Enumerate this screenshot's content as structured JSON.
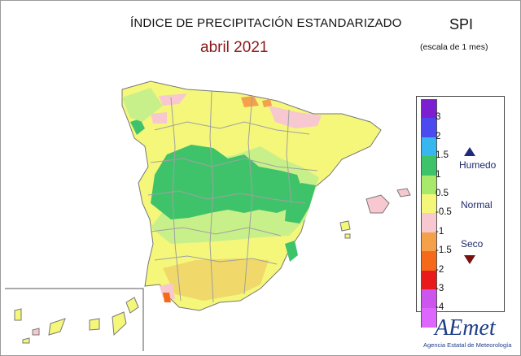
{
  "header": {
    "title": "ÍNDICE DE PRECIPITACIÓN ESTANDARIZADO",
    "period": "abril 2021",
    "index_name": "SPI",
    "scale_note": "(escala de 1 mes)"
  },
  "legend": {
    "entries": [
      {
        "label": "3",
        "color": "#7b1fd0"
      },
      {
        "label": "2",
        "color": "#4a4af0"
      },
      {
        "label": "1.5",
        "color": "#38b6f0"
      },
      {
        "label": "1",
        "color": "#3ec36b"
      },
      {
        "label": "0.5",
        "color": "#a8e86a"
      },
      {
        "label": "-0.5",
        "color": "#f5f77a"
      },
      {
        "label": "-1",
        "color": "#f7c8cf"
      },
      {
        "label": "-1.5",
        "color": "#f5a04a"
      },
      {
        "label": "-2",
        "color": "#f56a1a"
      },
      {
        "label": "-3",
        "color": "#e81a1a"
      },
      {
        "label": "-4",
        "color": "#cc55ee"
      }
    ],
    "bottom_color": "#dd66ff",
    "categories": {
      "wet": "Humedo",
      "normal": "Normal",
      "dry": "Seco"
    },
    "wet_color": "#1f2a7a",
    "dry_color": "#7a1010"
  },
  "map": {
    "region": "Spain",
    "colors": {
      "near_normal": "#f5f77a",
      "moderately_wet": "#c8f08a",
      "wet": "#3ec36b",
      "dry": "#f7c8cf",
      "very_dry": "#f5a04a",
      "border": "#a0a0a0"
    }
  },
  "logo": {
    "text": "AEmet",
    "subtitle": "Agencia Estatal de Meteorología"
  }
}
